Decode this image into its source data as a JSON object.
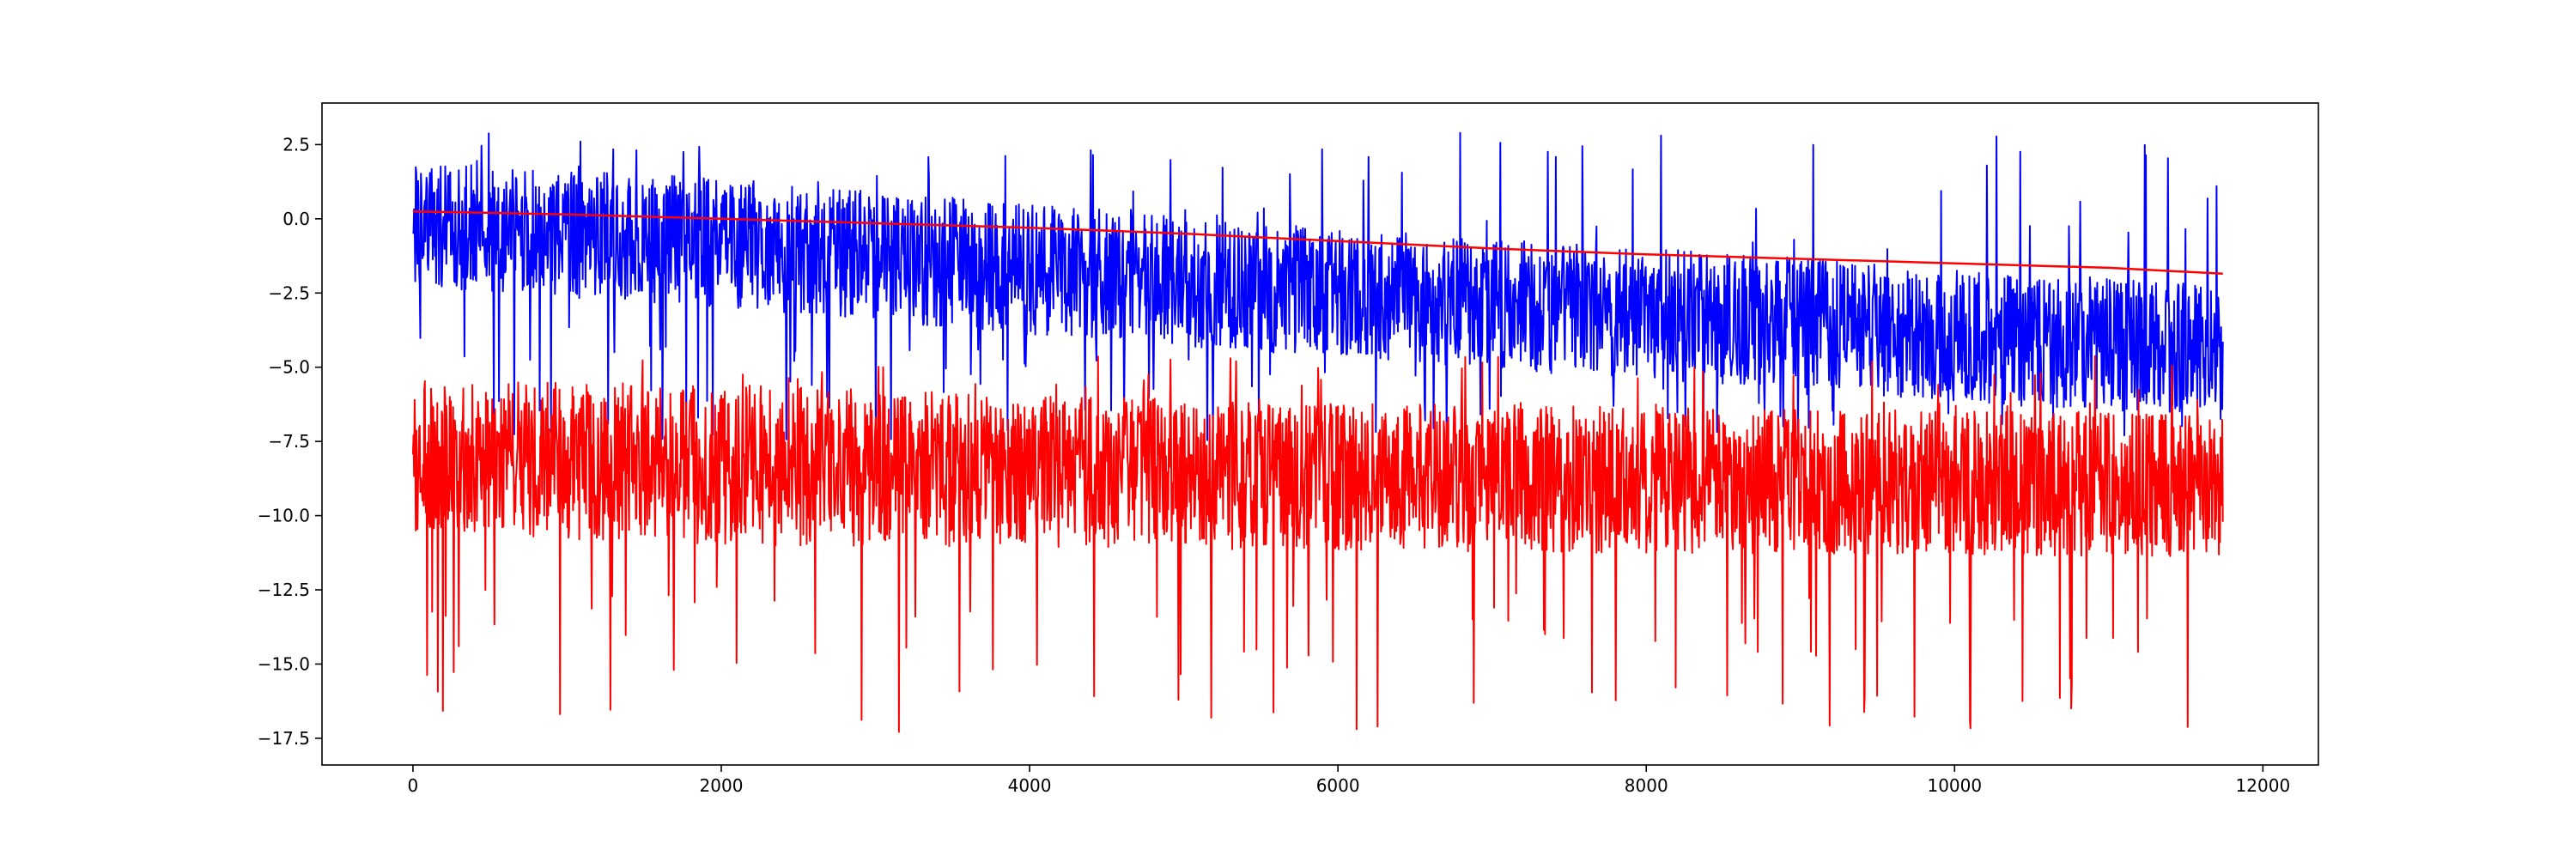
{
  "chart_data": {
    "type": "line",
    "title": "",
    "xlabel": "",
    "ylabel": "",
    "xlim": [
      -590,
      12360
    ],
    "ylim": [
      -18.4,
      3.9
    ],
    "xticks": [
      0,
      2000,
      4000,
      6000,
      8000,
      10000,
      12000
    ],
    "xtick_labels": [
      "0",
      "2000",
      "4000",
      "6000",
      "8000",
      "10000",
      "12000"
    ],
    "yticks": [
      2.5,
      0.0,
      -2.5,
      -5.0,
      -7.5,
      -10.0,
      -12.5,
      -15.0,
      -17.5
    ],
    "ytick_labels": [
      "2.5",
      "0.0",
      "−2.5",
      "−5.0",
      "−7.5",
      "−10.0",
      "−12.5",
      "−15.0",
      "−17.5"
    ],
    "grid": false,
    "legend": "none",
    "series": [
      {
        "color": "#0000ff",
        "x_range": [
          0,
          11740
        ],
        "center_trend": {
          "x": [
            0,
            2000,
            4000,
            6000,
            8000,
            10000,
            11740
          ],
          "y": [
            -0.2,
            -0.8,
            -1.7,
            -2.5,
            -3.2,
            -3.9,
            -4.5
          ]
        },
        "typical_range": {
          "x": [
            0,
            2000,
            4000,
            6000,
            8000,
            10000,
            11740
          ],
          "low": [
            -2.8,
            -3.5,
            -4.3,
            -5.0,
            -5.8,
            -6.6,
            -7.2
          ],
          "high": [
            2.2,
            1.6,
            0.9,
            0.1,
            -0.6,
            -1.3,
            -1.9
          ]
        },
        "extremes": {
          "max": 2.9,
          "min": -7.5
        }
      },
      {
        "color": "#ff0000",
        "x_range": [
          0,
          11740
        ],
        "center_trend": {
          "x": [
            0,
            2000,
            4000,
            6000,
            8000,
            10000,
            11740
          ],
          "y": [
            -8.0,
            -8.3,
            -8.5,
            -8.7,
            -8.8,
            -8.9,
            -9.0
          ]
        },
        "typical_range": {
          "x": [
            0,
            2000,
            4000,
            6000,
            8000,
            10000,
            11740
          ],
          "low": [
            -11.5,
            -12.0,
            -12.3,
            -12.5,
            -12.6,
            -12.7,
            -12.8
          ],
          "high": [
            -5.5,
            -5.6,
            -6.3,
            -6.6,
            -6.8,
            -7.0,
            -7.2
          ]
        },
        "extremes": {
          "max": -4.6,
          "min": -17.3
        }
      },
      {
        "color": "#ff0000",
        "x": [
          0,
          500,
          1000,
          2000,
          3000,
          4000,
          5000,
          6000,
          7000,
          8000,
          9000,
          10000,
          11000,
          11740
        ],
        "y": [
          0.25,
          0.2,
          0.15,
          0.0,
          -0.15,
          -0.3,
          -0.5,
          -0.75,
          -1.0,
          -1.2,
          -1.35,
          -1.5,
          -1.65,
          -1.85
        ]
      }
    ]
  }
}
